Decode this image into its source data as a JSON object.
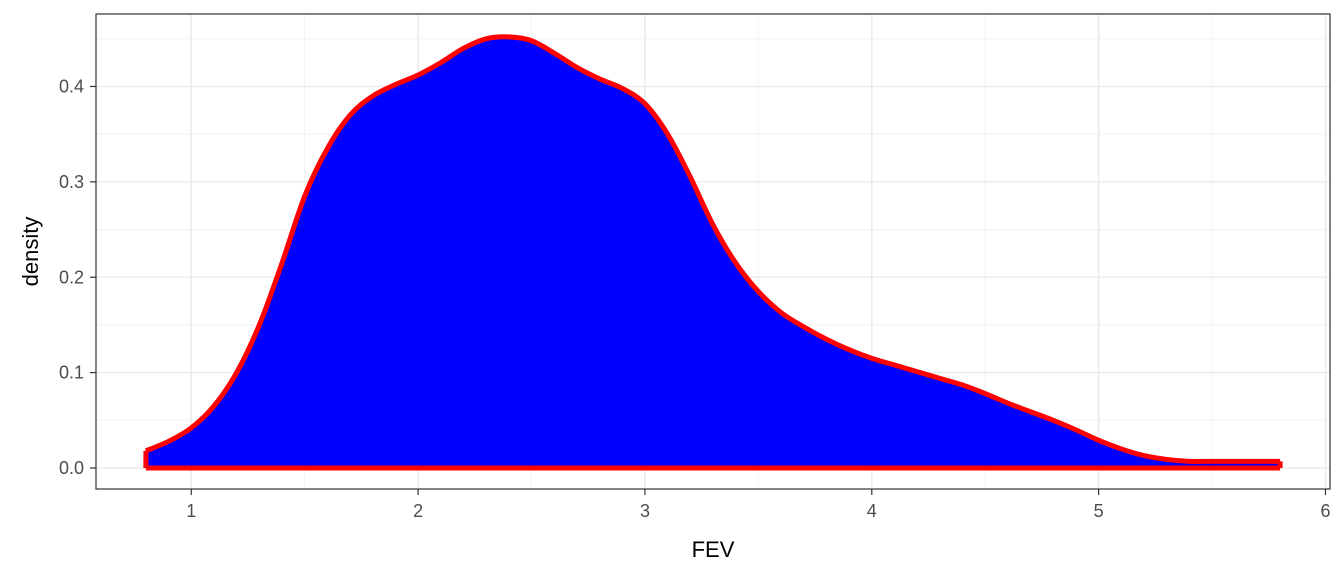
{
  "chart_data": {
    "type": "area",
    "title": "",
    "xlabel": "FEV",
    "ylabel": "density",
    "xlim": [
      0.58,
      6.02
    ],
    "ylim": [
      -0.022,
      0.476
    ],
    "x_ticks": [
      1,
      2,
      3,
      4,
      5,
      6
    ],
    "y_ticks": [
      0.0,
      0.1,
      0.2,
      0.3,
      0.4
    ],
    "y_tick_labels": [
      "0.0",
      "0.1",
      "0.2",
      "0.3",
      "0.4"
    ],
    "grid": true,
    "legend": "none",
    "fill_color": "#0000ff",
    "line_color": "#ff0000",
    "series": [
      {
        "x": [
          0.8,
          0.9,
          1.0,
          1.1,
          1.2,
          1.3,
          1.4,
          1.5,
          1.6,
          1.7,
          1.8,
          1.9,
          2.0,
          2.1,
          2.2,
          2.3,
          2.4,
          2.5,
          2.6,
          2.7,
          2.8,
          2.9,
          3.0,
          3.1,
          3.2,
          3.3,
          3.4,
          3.5,
          3.6,
          3.7,
          3.8,
          3.9,
          4.0,
          4.1,
          4.2,
          4.3,
          4.4,
          4.5,
          4.6,
          4.7,
          4.8,
          4.9,
          5.0,
          5.1,
          5.2,
          5.3,
          5.4,
          5.5,
          5.6,
          5.7,
          5.8
        ],
        "y": [
          0.018,
          0.028,
          0.042,
          0.065,
          0.1,
          0.15,
          0.215,
          0.285,
          0.335,
          0.37,
          0.39,
          0.402,
          0.412,
          0.425,
          0.44,
          0.45,
          0.452,
          0.448,
          0.435,
          0.42,
          0.408,
          0.398,
          0.382,
          0.35,
          0.305,
          0.255,
          0.215,
          0.185,
          0.163,
          0.148,
          0.135,
          0.124,
          0.115,
          0.108,
          0.101,
          0.094,
          0.087,
          0.078,
          0.068,
          0.059,
          0.05,
          0.04,
          0.029,
          0.02,
          0.013,
          0.009,
          0.007,
          0.007,
          0.007,
          0.007,
          0.007
        ]
      }
    ]
  }
}
